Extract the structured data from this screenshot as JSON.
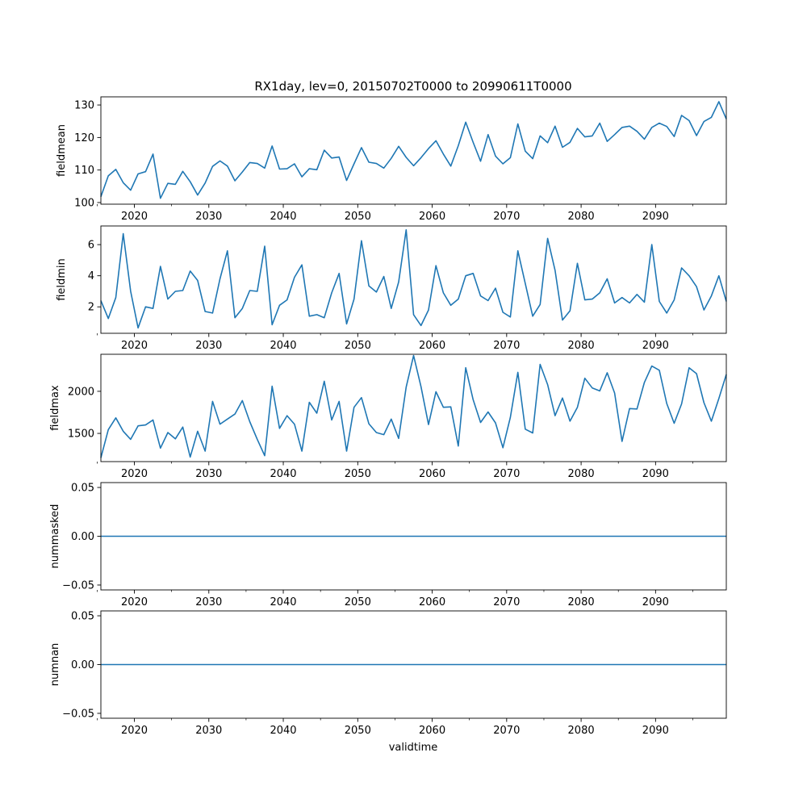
{
  "chart_data": {
    "type": "line",
    "title": "RX1day, lev=0, 20150702T0000 to 20990611T0000",
    "xlabel": "validtime",
    "xlim": [
      2015.5,
      2099.5
    ],
    "x": [
      2015.5,
      2016.5,
      2017.5,
      2018.5,
      2019.5,
      2020.5,
      2021.5,
      2022.5,
      2023.5,
      2024.5,
      2025.5,
      2026.5,
      2027.5,
      2028.5,
      2029.5,
      2030.5,
      2031.5,
      2032.5,
      2033.5,
      2034.5,
      2035.5,
      2036.5,
      2037.5,
      2038.5,
      2039.5,
      2040.5,
      2041.5,
      2042.5,
      2043.5,
      2044.5,
      2045.5,
      2046.5,
      2047.5,
      2048.5,
      2049.5,
      2050.5,
      2051.5,
      2052.5,
      2053.5,
      2054.5,
      2055.5,
      2056.5,
      2057.5,
      2058.5,
      2059.5,
      2060.5,
      2061.5,
      2062.5,
      2063.5,
      2064.5,
      2065.5,
      2066.5,
      2067.5,
      2068.5,
      2069.5,
      2070.5,
      2071.5,
      2072.5,
      2073.5,
      2074.5,
      2075.5,
      2076.5,
      2077.5,
      2078.5,
      2079.5,
      2080.5,
      2081.5,
      2082.5,
      2083.5,
      2084.5,
      2085.5,
      2086.5,
      2087.5,
      2088.5,
      2089.5,
      2090.5,
      2091.5,
      2092.5,
      2093.5,
      2094.5,
      2095.5,
      2096.5,
      2097.5,
      2098.5,
      2099.5
    ],
    "xticks": [
      2020,
      2030,
      2040,
      2050,
      2060,
      2070,
      2080,
      2090
    ],
    "xtick_labels": [
      "2020",
      "2030",
      "2040",
      "2050",
      "2060",
      "2070",
      "2080",
      "2090"
    ],
    "xminor": [
      2015,
      2025,
      2035,
      2045,
      2055,
      2065,
      2075,
      2085,
      2095
    ],
    "panels": [
      {
        "name": "fieldmean",
        "ylabel": "fieldmean",
        "ylim": [
          99.5,
          132.5
        ],
        "yticks": [
          100,
          110,
          120,
          130
        ],
        "ytick_labels": [
          "100",
          "110",
          "120",
          "130"
        ],
        "values": [
          101.8,
          108.2,
          110.2,
          106.1,
          103.8,
          108.8,
          109.5,
          114.9,
          101.3,
          105.9,
          105.6,
          109.6,
          106.4,
          102.3,
          106.0,
          111.1,
          112.8,
          111.2,
          106.7,
          109.4,
          112.3,
          112.0,
          110.6,
          117.4,
          110.3,
          110.4,
          111.9,
          107.9,
          110.4,
          110.1,
          116.1,
          113.7,
          114.0,
          106.8,
          111.9,
          116.9,
          112.4,
          112.0,
          110.6,
          113.6,
          117.3,
          113.9,
          111.3,
          113.8,
          116.6,
          119.0,
          114.9,
          111.2,
          117.5,
          124.7,
          118.5,
          112.7,
          120.9,
          114.3,
          111.9,
          113.8,
          124.2,
          115.8,
          113.5,
          120.5,
          118.4,
          123.5,
          117.0,
          118.5,
          122.8,
          120.2,
          120.5,
          124.4,
          118.8,
          120.9,
          123.1,
          123.5,
          121.9,
          119.5,
          123.1,
          124.4,
          123.4,
          120.3,
          126.8,
          125.2,
          120.6,
          124.9,
          126.2,
          131.0,
          125.7
        ]
      },
      {
        "name": "fieldmin",
        "ylabel": "fieldmin",
        "ylim": [
          0.3,
          7.2
        ],
        "yticks": [
          2,
          4,
          6
        ],
        "ytick_labels": [
          "2",
          "4",
          "6"
        ],
        "values": [
          2.4,
          1.25,
          2.6,
          6.7,
          3.0,
          0.65,
          2.0,
          1.9,
          4.6,
          2.5,
          3.0,
          3.05,
          4.3,
          3.7,
          1.7,
          1.6,
          3.8,
          5.6,
          1.3,
          1.9,
          3.05,
          3.0,
          5.9,
          0.85,
          2.1,
          2.45,
          3.9,
          4.7,
          1.4,
          1.5,
          1.3,
          2.9,
          4.15,
          0.9,
          2.5,
          6.25,
          3.35,
          2.95,
          3.95,
          1.9,
          3.6,
          6.95,
          1.5,
          0.8,
          1.8,
          4.65,
          2.9,
          2.1,
          2.5,
          4.0,
          4.15,
          2.7,
          2.4,
          3.2,
          1.65,
          1.35,
          5.6,
          3.5,
          1.4,
          2.15,
          6.4,
          4.35,
          1.15,
          1.75,
          4.8,
          2.45,
          2.5,
          2.9,
          3.8,
          2.25,
          2.6,
          2.25,
          2.8,
          2.3,
          6.0,
          2.35,
          1.6,
          2.45,
          4.5,
          4.0,
          3.3,
          1.8,
          2.7,
          4.0,
          2.35
        ]
      },
      {
        "name": "fieldmax",
        "ylabel": "fieldmax",
        "ylim": [
          1165,
          2440
        ],
        "yticks": [
          1500,
          2000
        ],
        "ytick_labels": [
          "1500",
          "2000"
        ],
        "values": [
          1210,
          1545,
          1685,
          1525,
          1430,
          1590,
          1600,
          1660,
          1325,
          1510,
          1435,
          1575,
          1220,
          1525,
          1290,
          1880,
          1610,
          1670,
          1730,
          1890,
          1640,
          1430,
          1235,
          2060,
          1560,
          1710,
          1610,
          1290,
          1870,
          1740,
          2120,
          1660,
          1880,
          1290,
          1810,
          1925,
          1615,
          1510,
          1485,
          1670,
          1440,
          2050,
          2425,
          2055,
          1605,
          1995,
          1810,
          1815,
          1350,
          2280,
          1900,
          1630,
          1755,
          1625,
          1330,
          1690,
          2225,
          1550,
          1505,
          2320,
          2080,
          1710,
          1920,
          1645,
          1810,
          2155,
          2040,
          2005,
          2220,
          1980,
          1405,
          1795,
          1790,
          2105,
          2300,
          2250,
          1855,
          1620,
          1850,
          2280,
          2210,
          1865,
          1645,
          1915,
          2200
        ]
      },
      {
        "name": "nummasked",
        "ylabel": "nummasked",
        "ylim": [
          -0.055,
          0.055
        ],
        "yticks": [
          -0.05,
          0.0,
          0.05
        ],
        "ytick_labels": [
          "−0.05",
          "0.00",
          "0.05"
        ],
        "values": [
          0,
          0,
          0,
          0,
          0,
          0,
          0,
          0,
          0,
          0,
          0,
          0,
          0,
          0,
          0,
          0,
          0,
          0,
          0,
          0,
          0,
          0,
          0,
          0,
          0,
          0,
          0,
          0,
          0,
          0,
          0,
          0,
          0,
          0,
          0,
          0,
          0,
          0,
          0,
          0,
          0,
          0,
          0,
          0,
          0,
          0,
          0,
          0,
          0,
          0,
          0,
          0,
          0,
          0,
          0,
          0,
          0,
          0,
          0,
          0,
          0,
          0,
          0,
          0,
          0,
          0,
          0,
          0,
          0,
          0,
          0,
          0,
          0,
          0,
          0,
          0,
          0,
          0,
          0,
          0,
          0,
          0,
          0,
          0,
          0
        ]
      },
      {
        "name": "numnan",
        "ylabel": "numnan",
        "ylim": [
          -0.055,
          0.055
        ],
        "yticks": [
          -0.05,
          0.0,
          0.05
        ],
        "ytick_labels": [
          "−0.05",
          "0.00",
          "0.05"
        ],
        "values": [
          0,
          0,
          0,
          0,
          0,
          0,
          0,
          0,
          0,
          0,
          0,
          0,
          0,
          0,
          0,
          0,
          0,
          0,
          0,
          0,
          0,
          0,
          0,
          0,
          0,
          0,
          0,
          0,
          0,
          0,
          0,
          0,
          0,
          0,
          0,
          0,
          0,
          0,
          0,
          0,
          0,
          0,
          0,
          0,
          0,
          0,
          0,
          0,
          0,
          0,
          0,
          0,
          0,
          0,
          0,
          0,
          0,
          0,
          0,
          0,
          0,
          0,
          0,
          0,
          0,
          0,
          0,
          0,
          0,
          0,
          0,
          0,
          0,
          0,
          0,
          0,
          0,
          0,
          0,
          0,
          0,
          0,
          0,
          0,
          0
        ]
      }
    ]
  },
  "colors": {
    "line": "#1f77b4",
    "axes": "#000000",
    "background": "#ffffff"
  }
}
